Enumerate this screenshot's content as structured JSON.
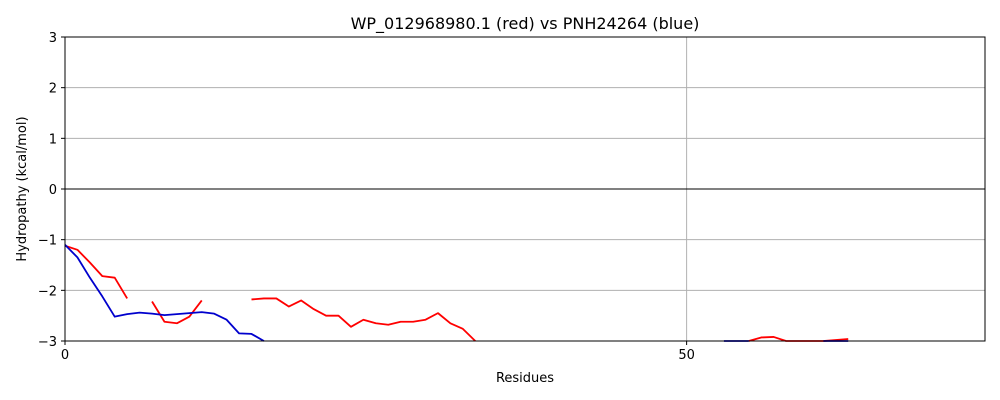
{
  "chart_data": {
    "type": "line",
    "title": "WP_012968980.1 (red) vs PNH24264 (blue)",
    "xlabel": "Residues",
    "ylabel": "Hydropathy (kcal/mol)",
    "xlim": [
      0,
      74
    ],
    "ylim": [
      -3,
      3
    ],
    "x_ticks": [
      0,
      50
    ],
    "y_ticks": [
      -3,
      -2,
      -1,
      0,
      1,
      2,
      3
    ],
    "grid": true,
    "zero_line": true,
    "series": [
      {
        "color": "#ff0000",
        "segments": [
          [
            [
              0,
              -1.12
            ],
            [
              1,
              -1.2
            ],
            [
              2,
              -1.45
            ],
            [
              3,
              -1.72
            ],
            [
              4,
              -1.75
            ],
            [
              5,
              -2.16
            ]
          ],
          [
            [
              7,
              -2.22
            ],
            [
              8,
              -2.62
            ],
            [
              9,
              -2.65
            ],
            [
              10,
              -2.52
            ],
            [
              11,
              -2.2
            ]
          ],
          [
            [
              15,
              -2.18
            ],
            [
              16,
              -2.16
            ],
            [
              17,
              -2.16
            ],
            [
              18,
              -2.32
            ],
            [
              19,
              -2.2
            ],
            [
              20,
              -2.37
            ],
            [
              21,
              -2.5
            ],
            [
              22,
              -2.5
            ],
            [
              23,
              -2.72
            ],
            [
              24,
              -2.58
            ],
            [
              25,
              -2.65
            ],
            [
              26,
              -2.68
            ],
            [
              27,
              -2.62
            ],
            [
              28,
              -2.62
            ],
            [
              29,
              -2.58
            ],
            [
              30,
              -2.45
            ],
            [
              31,
              -2.65
            ],
            [
              32,
              -2.76
            ],
            [
              33,
              -3.0
            ]
          ],
          [
            [
              55,
              -3.0
            ],
            [
              56,
              -2.93
            ],
            [
              57,
              -2.92
            ],
            [
              58,
              -3.0
            ],
            [
              61,
              -3.0
            ],
            [
              62,
              -2.98
            ],
            [
              63,
              -2.96
            ]
          ]
        ]
      },
      {
        "color": "#0000cd",
        "segments": [
          [
            [
              0,
              -1.1
            ],
            [
              1,
              -1.35
            ],
            [
              2,
              -1.75
            ],
            [
              3,
              -2.12
            ],
            [
              4,
              -2.52
            ],
            [
              5,
              -2.47
            ],
            [
              6,
              -2.44
            ],
            [
              7,
              -2.46
            ],
            [
              8,
              -2.49
            ],
            [
              9,
              -2.47
            ],
            [
              10,
              -2.45
            ],
            [
              11,
              -2.43
            ],
            [
              12,
              -2.46
            ],
            [
              13,
              -2.58
            ],
            [
              14,
              -2.85
            ],
            [
              15,
              -2.86
            ],
            [
              16,
              -3.0
            ]
          ],
          [
            [
              53,
              -3.0
            ],
            [
              55,
              -3.0
            ]
          ],
          [
            [
              61,
              -3.0
            ],
            [
              63,
              -3.0
            ]
          ]
        ]
      }
    ]
  }
}
